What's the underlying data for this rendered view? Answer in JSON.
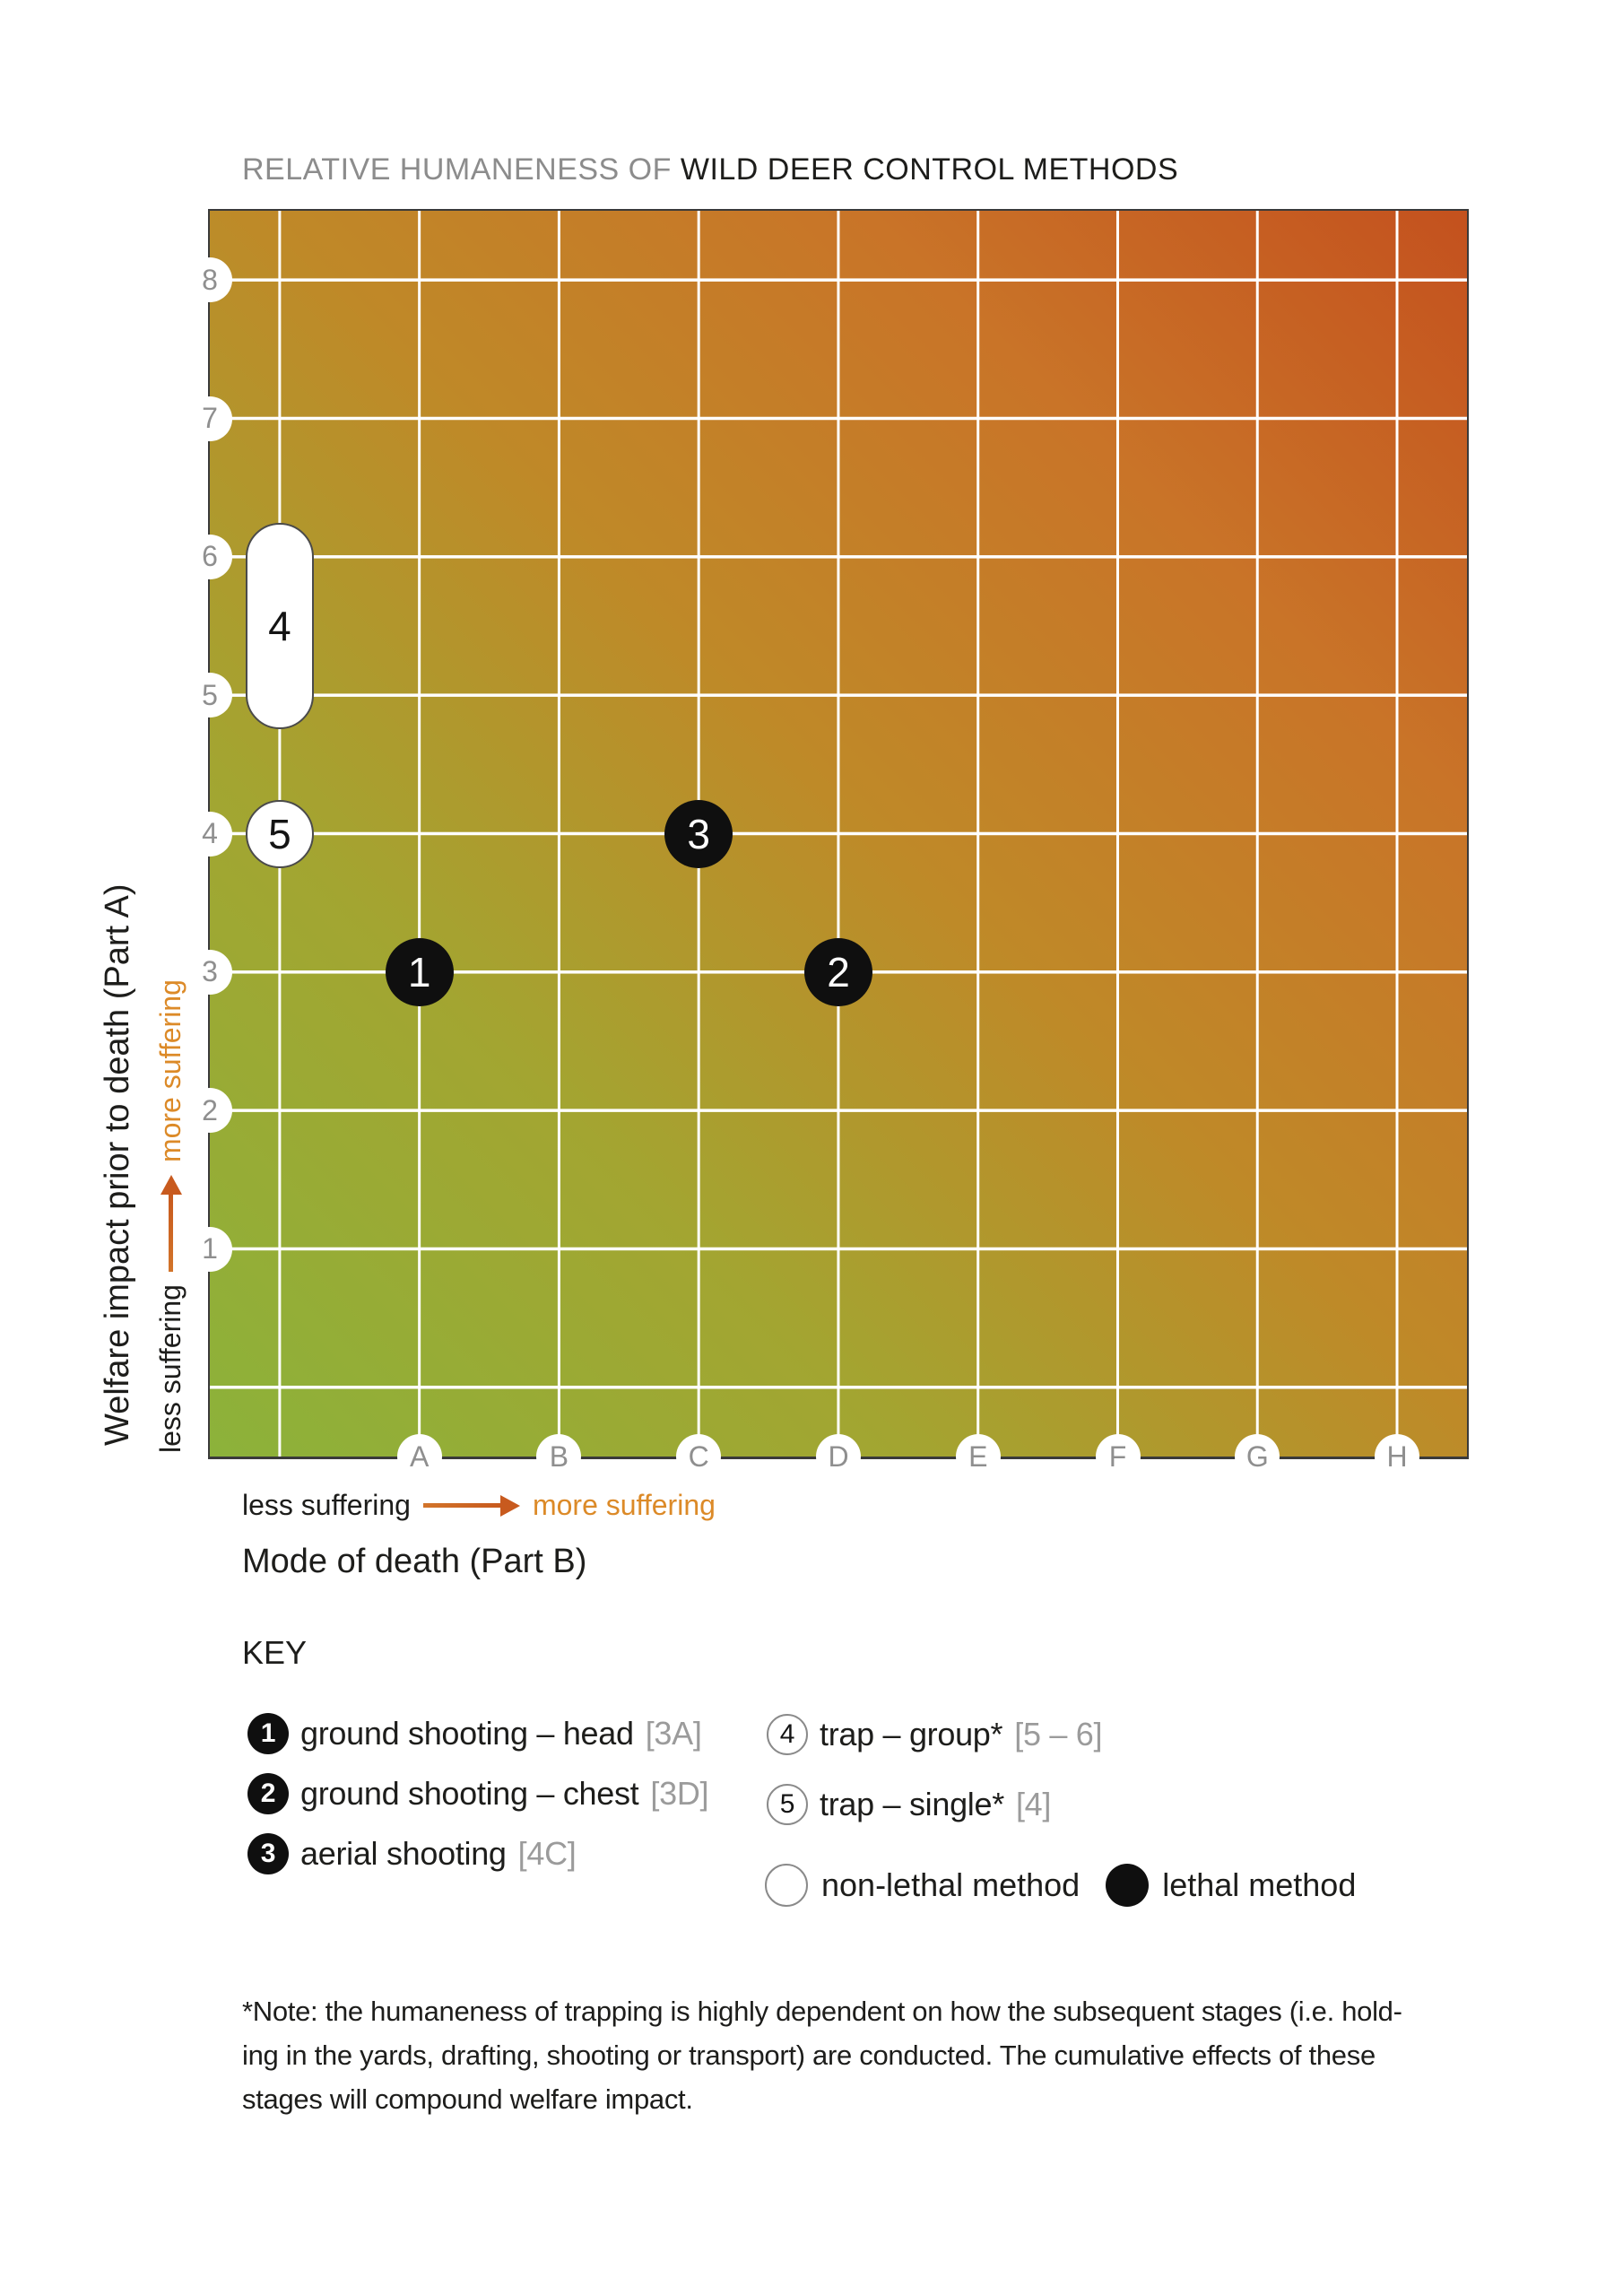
{
  "page": {
    "background": "#ffffff"
  },
  "title": {
    "prefix": "RELATIVE HUMANENESS OF",
    "emphasis": "WILD DEER CONTROL METHODS"
  },
  "colors": {
    "title_prefix": "#8c8c8c",
    "title_emphasis": "#1d1d1b",
    "tick_text": "#8f8f8f",
    "ref_text": "#9b9b9b",
    "accent_orange": "#DC8A28",
    "arrow_orange_red": "#C85A1E",
    "lethal_black": "#0f0f0f",
    "grid_line": "#ffffff",
    "chart_border": "#3a3a3a"
  },
  "chart_data": {
    "type": "scatter",
    "title": "RELATIVE HUMANENESS OF WILD DEER CONTROL METHODS",
    "x_axis": {
      "label": "Mode of death (Part B)",
      "ticks": [
        "A",
        "B",
        "C",
        "D",
        "E",
        "F",
        "G",
        "H"
      ],
      "direction_note": {
        "less": "less suffering",
        "more": "more suffering"
      }
    },
    "y_axis": {
      "label": "Welfare impact prior to death (Part A)",
      "ticks": [
        "8",
        "7",
        "6",
        "5",
        "4",
        "3",
        "2",
        "1"
      ],
      "range": [
        1,
        8
      ],
      "direction_note": {
        "less": "less suffering",
        "more": "more suffering"
      }
    },
    "grid": {
      "v_lines": 9,
      "h_lines": 9,
      "first_v_line_unlabeled": true,
      "grid_color": "#ffffff"
    },
    "gradient": {
      "direction": "to top right",
      "stops": [
        "#8CB23A 0%",
        "#A3A531 28%",
        "#BF8928 52%",
        "#C97428 76%",
        "#C4511E 100%"
      ]
    },
    "points": [
      {
        "label": "1",
        "method": "ground shooting – head",
        "ref": "[3A]",
        "x": "A",
        "y": 3,
        "lethal": true
      },
      {
        "label": "2",
        "method": "ground shooting – chest",
        "ref": "[3D]",
        "x": "D",
        "y": 3,
        "lethal": true
      },
      {
        "label": "3",
        "method": "aerial shooting",
        "ref": "[4C]",
        "x": "C",
        "y": 4,
        "lethal": true
      },
      {
        "label": "4",
        "method": "trap – group*",
        "ref": "[5 – 6]",
        "x": null,
        "y": [
          5,
          6
        ],
        "lethal": false
      },
      {
        "label": "5",
        "method": "trap – single*",
        "ref": "[4]",
        "x": null,
        "y": 4,
        "lethal": false
      }
    ]
  },
  "key": {
    "heading": "KEY",
    "left": [
      {
        "num": "1",
        "lethal": true,
        "label": "ground shooting – head",
        "ref": "[3A]"
      },
      {
        "num": "2",
        "lethal": true,
        "label": "ground shooting – chest",
        "ref": "[3D]"
      },
      {
        "num": "3",
        "lethal": true,
        "label": "aerial shooting",
        "ref": "[4C]"
      }
    ],
    "right": [
      {
        "num": "4",
        "lethal": false,
        "label": "trap – group*",
        "ref": "[5 – 6]"
      },
      {
        "num": "5",
        "lethal": false,
        "label": "trap – single*",
        "ref": "[4]"
      }
    ],
    "legend": [
      {
        "lethal": false,
        "label": "non-lethal method"
      },
      {
        "lethal": true,
        "label": "lethal method"
      }
    ]
  },
  "footnote": {
    "lines": [
      "*Note: the humaneness of trapping is highly dependent on how the subsequent stages (i.e. hold-",
      "ing in the yards, drafting, shooting or transport) are conducted. The cumulative effects of these",
      "stages will compound welfare impact."
    ]
  }
}
